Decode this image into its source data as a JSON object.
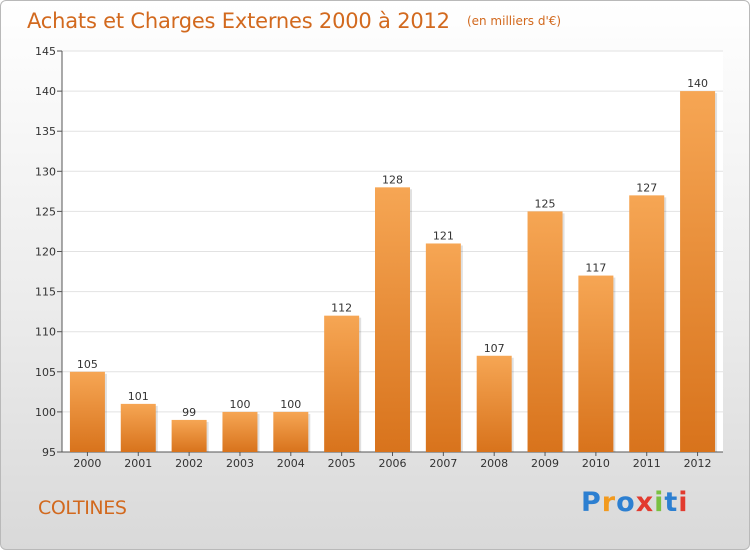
{
  "header": {
    "title": "Achats et Charges Externes 2000 à 2012",
    "unit": "(en milliers d'€)"
  },
  "footer": {
    "commune": "COLTINES",
    "logo_text": "Proxiti"
  },
  "colors": {
    "accent": "#d2691e",
    "bar_top": "#f6a654",
    "bar_bottom": "#d8731c"
  },
  "chart_data": {
    "type": "bar",
    "title": "Achats et Charges Externes 2000 à 2012",
    "subtitle": "(en milliers d'€)",
    "xlabel": "",
    "ylabel": "",
    "categories": [
      "2000",
      "2001",
      "2002",
      "2003",
      "2004",
      "2005",
      "2006",
      "2007",
      "2008",
      "2009",
      "2010",
      "2011",
      "2012"
    ],
    "values": [
      105,
      101,
      99,
      100,
      100,
      112,
      128,
      121,
      107,
      125,
      117,
      127,
      140
    ],
    "ylim": [
      95,
      145
    ],
    "yticks": [
      95,
      100,
      105,
      110,
      115,
      120,
      125,
      130,
      135,
      140,
      145
    ],
    "grid": true,
    "data_labels": true
  }
}
